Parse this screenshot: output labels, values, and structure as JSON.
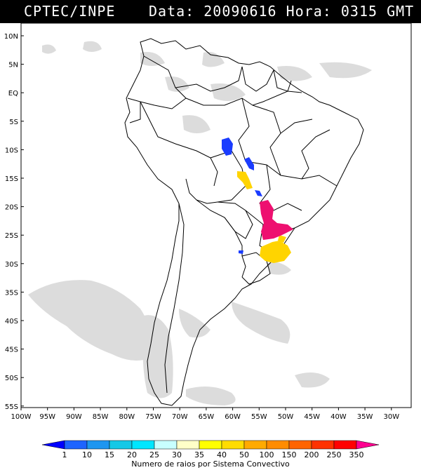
{
  "header": {
    "source": "CPTEC/INPE",
    "datetime": "Data: 20090616 Hora: 0315 GMT"
  },
  "lat_labels": [
    "10N",
    "5N",
    "EQ",
    "5S",
    "10S",
    "15S",
    "20S",
    "25S",
    "30S",
    "35S",
    "40S",
    "45S",
    "50S",
    "55S"
  ],
  "lon_labels": [
    "100W",
    "95W",
    "90W",
    "85W",
    "80W",
    "75W",
    "70W",
    "65W",
    "60W",
    "55W",
    "50W",
    "45W",
    "40W",
    "35W",
    "30W"
  ],
  "legend": {
    "values": [
      "1",
      "10",
      "15",
      "20",
      "25",
      "30",
      "35",
      "40",
      "50",
      "100",
      "150",
      "200",
      "250",
      "350"
    ],
    "title": "Numero de raios por Sistema Convectivo",
    "colors": [
      "#0000ff",
      "#1e64ff",
      "#1e96f0",
      "#14c8e6",
      "#00e6ff",
      "#c8ffff",
      "#ffffc8",
      "#ffff00",
      "#ffdc00",
      "#ffaa00",
      "#ff8c00",
      "#ff6400",
      "#ff3200",
      "#ff0000",
      "#ff0090"
    ]
  },
  "storm_colors": {
    "blue": "#1a3cff",
    "yellow": "#ffd400",
    "magenta": "#ee1070"
  }
}
